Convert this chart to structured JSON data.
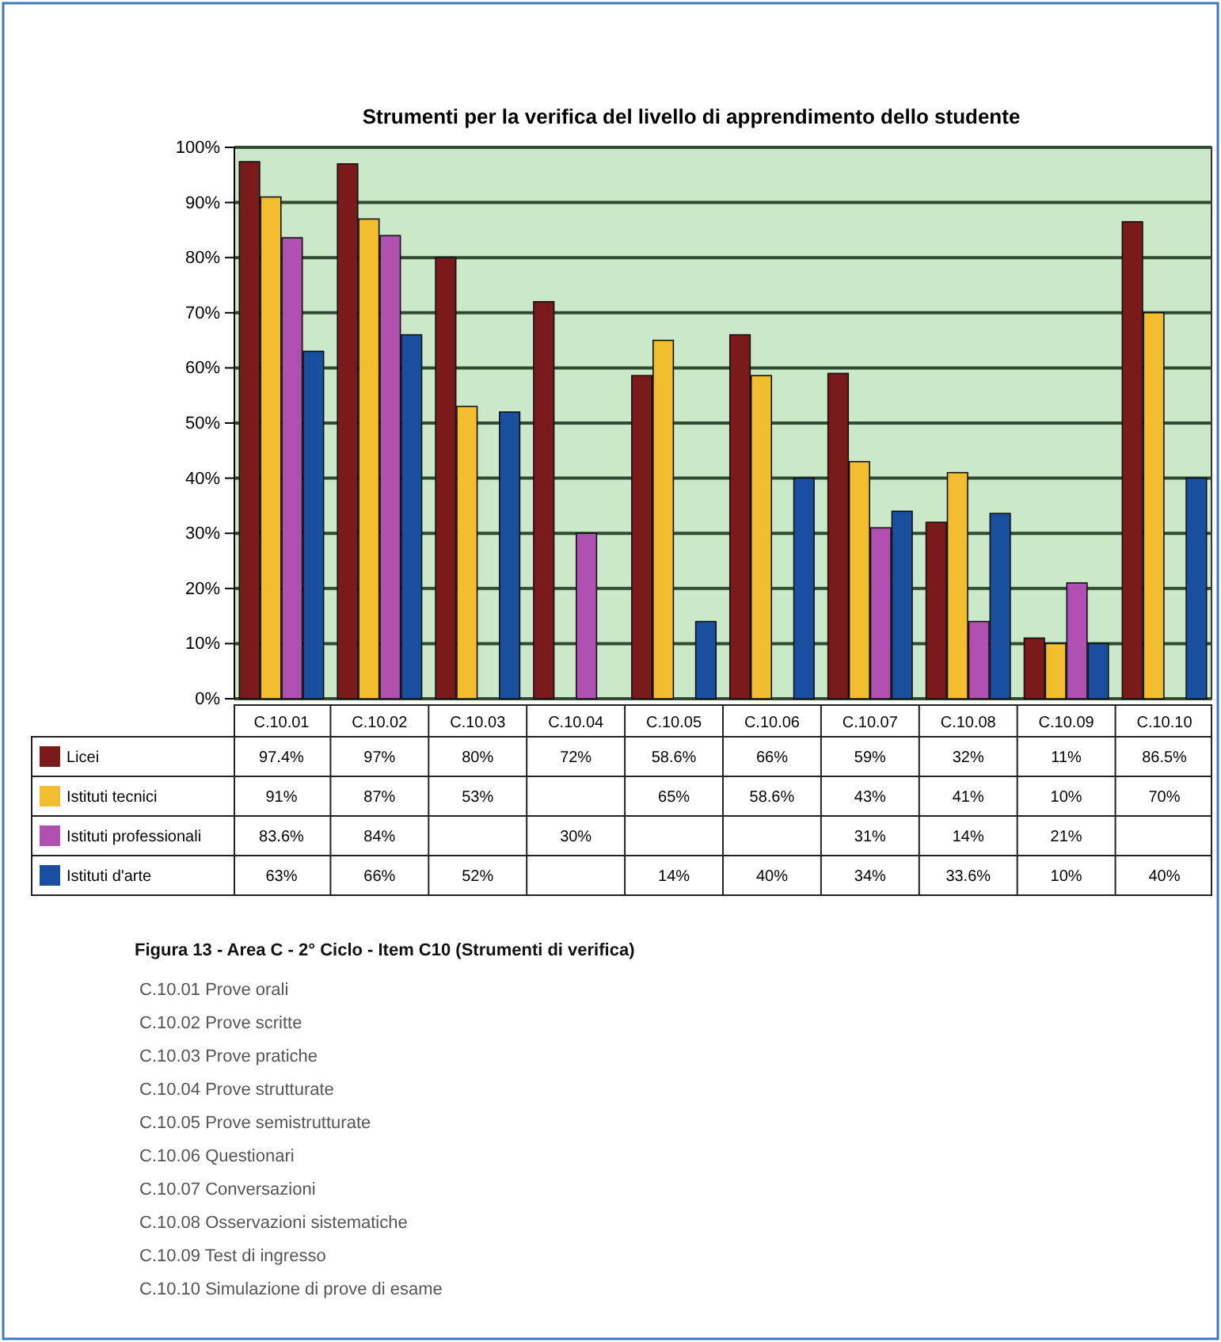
{
  "chart_data": {
    "type": "bar",
    "title": "Strumenti per la verifica del livello di apprendimento dello studente",
    "categories": [
      "C.10.01",
      "C.10.02",
      "C.10.03",
      "C.10.04",
      "C.10.05",
      "C.10.06",
      "C.10.07",
      "C.10.08",
      "C.10.09",
      "C.10.10"
    ],
    "series": [
      {
        "name": "Licei",
        "color": "#7b1a1a",
        "values": [
          97.4,
          97,
          80,
          72,
          58.6,
          66,
          59,
          32,
          11,
          86.5
        ],
        "value_labels": [
          "97.4%",
          "97%",
          "80%",
          "72%",
          "58.6%",
          "66%",
          "59%",
          "32%",
          "11%",
          "86.5%"
        ]
      },
      {
        "name": "Istituti tecnici",
        "color": "#f2bd2f",
        "values": [
          91,
          87,
          53,
          null,
          65,
          58.6,
          43,
          41,
          10,
          70
        ],
        "value_labels": [
          "91%",
          "87%",
          "53%",
          null,
          "65%",
          "58.6%",
          "43%",
          "41%",
          "10%",
          "70%"
        ]
      },
      {
        "name": "Istituti professionali",
        "color": "#b050b0",
        "values": [
          83.6,
          84,
          null,
          30,
          null,
          null,
          31,
          14,
          21,
          null
        ],
        "value_labels": [
          "83.6%",
          "84%",
          null,
          "30%",
          null,
          null,
          "31%",
          "14%",
          "21%",
          null
        ]
      },
      {
        "name": "Istituti d'arte",
        "color": "#1a4fa0",
        "values": [
          63,
          66,
          52,
          null,
          14,
          40,
          34,
          33.6,
          10,
          40
        ],
        "value_labels": [
          "63%",
          "66%",
          "52%",
          null,
          "14%",
          "40%",
          "34%",
          "33.6%",
          "10%",
          "40%"
        ]
      }
    ],
    "ylim": [
      0,
      100
    ],
    "yticks": [
      {
        "value": 0,
        "label": "0%"
      },
      {
        "value": 10,
        "label": "10%"
      },
      {
        "value": 20,
        "label": "20%"
      },
      {
        "value": 30,
        "label": "30%"
      },
      {
        "value": 40,
        "label": "40%"
      },
      {
        "value": 50,
        "label": "50%"
      },
      {
        "value": 60,
        "label": "60%"
      },
      {
        "value": 70,
        "label": "70%"
      },
      {
        "value": 80,
        "label": "80%"
      },
      {
        "value": 90,
        "label": "90%"
      },
      {
        "value": 100,
        "label": "100%"
      }
    ],
    "grid": "y",
    "legend": "bottom",
    "annotations": [
      "Figura 13 - Area C - 2° Ciclo - Item C10 (Strumenti di verifica)",
      "C.10.01 Prove orali",
      "C.10.02 Prove scritte",
      "C.10.03 Prove pratiche",
      "C.10.04 Prove strutturate",
      "C.10.05 Prove semistrutturate",
      "C.10.06 Questionari",
      "C.10.07 Conversazioni",
      "C.10.08 Osservazioni sistematiche",
      "C.10.09 Test di ingresso",
      "C.10.10 Simulazione di prove di esame"
    ]
  }
}
